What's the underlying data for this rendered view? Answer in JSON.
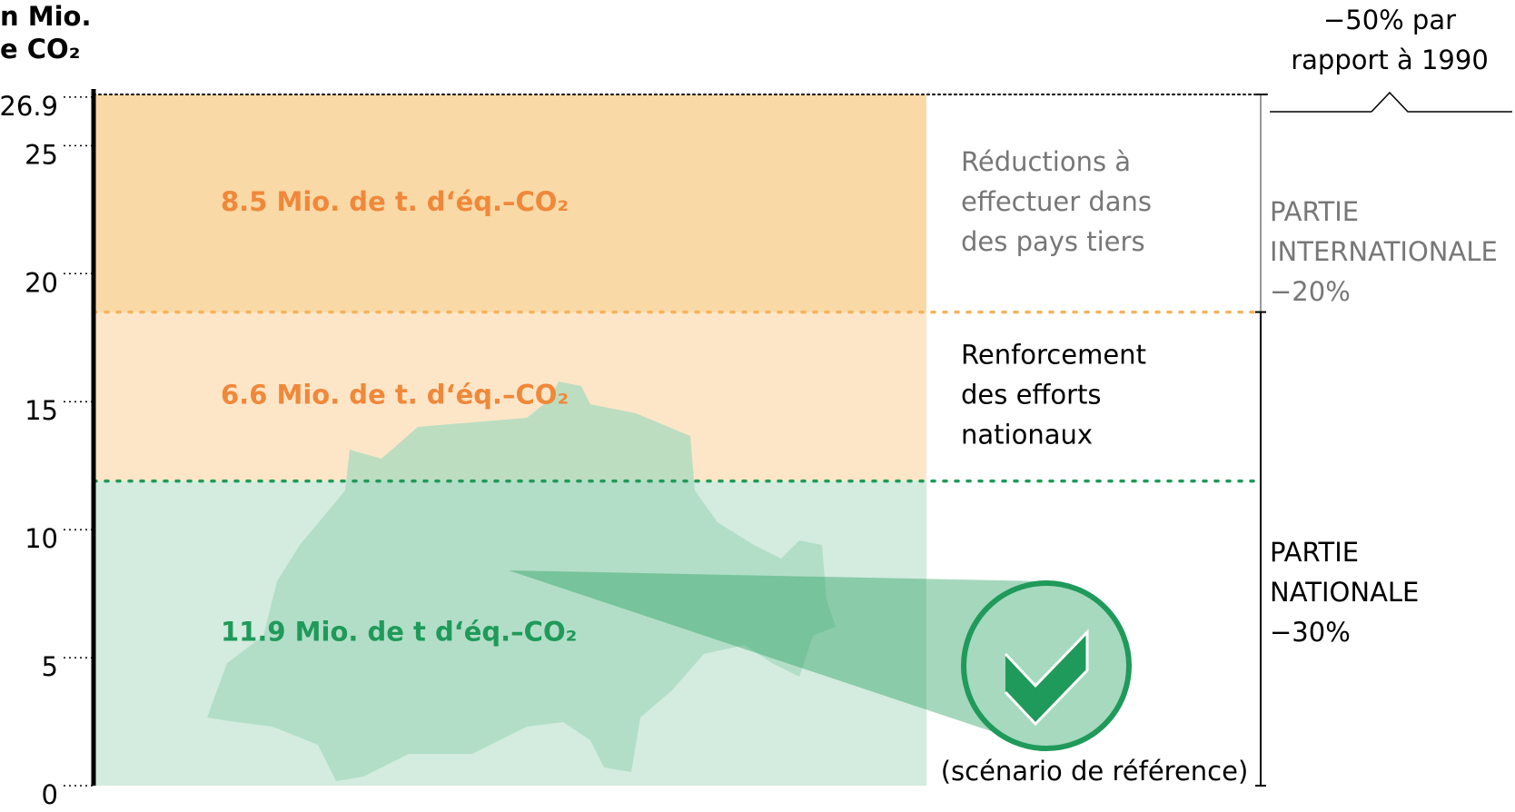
{
  "chart_data": {
    "type": "stacked_bar",
    "ylabel": [
      "n Mio.",
      "e CO₂"
    ],
    "categories": [
      null
    ],
    "series": [
      {
        "name": [
          "(scénario de référence)"
        ],
        "color": "#d3ecdf",
        "label_color": "#1f9a5a",
        "values": [
          11.9
        ],
        "value_labels": [
          "11.9 Mio. de t d‘éq.–CO₂"
        ]
      },
      {
        "name": [
          "Renforcement",
          "des efforts",
          "nationaux"
        ],
        "color": "#fde6c8",
        "label_color": "#f0883a",
        "values": [
          6.6
        ],
        "value_labels": [
          "6.6 Mio. de t. d‘éq.–CO₂"
        ]
      },
      {
        "name": [
          "Réductions à",
          "effectuer dans",
          "des pays tiers"
        ],
        "color": "#f9d9a6",
        "label_color": "#f0883a",
        "values": [
          8.5
        ],
        "value_labels": [
          "8.5 Mio. de t. d‘éq.–CO₂"
        ]
      }
    ],
    "ylim": [
      0,
      27
    ],
    "yticks": [
      0,
      5,
      10,
      15,
      20,
      25,
      26.9
    ],
    "annotations": {
      "total": [
        "−50% par",
        "rapport à 1990"
      ],
      "international": [
        "PARTIE",
        "INTERNATIONALE",
        "−20%"
      ],
      "national": [
        "PARTIE",
        "NATIONALE",
        "−30%"
      ]
    }
  }
}
